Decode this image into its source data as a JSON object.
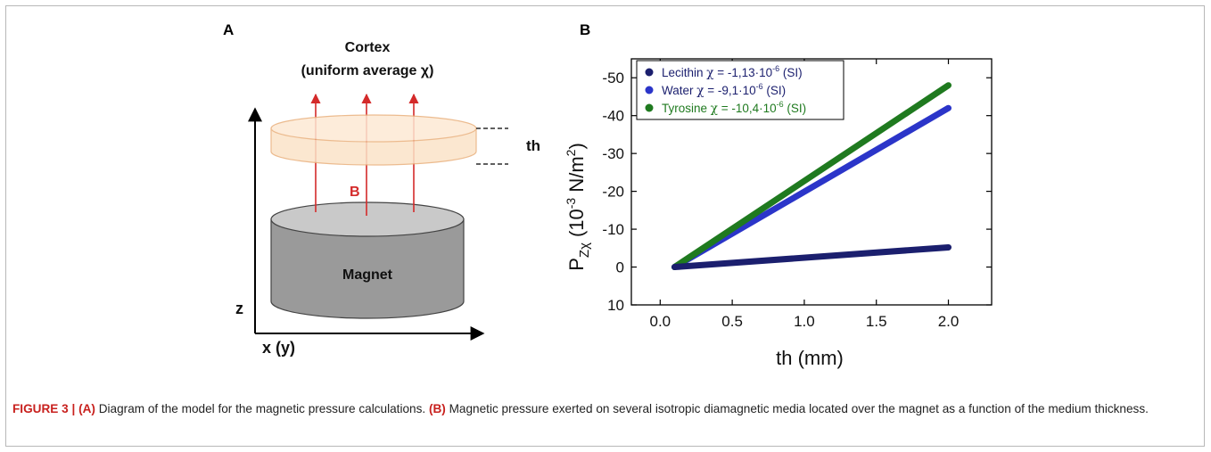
{
  "panel_a": {
    "letter": "A",
    "cortex_title": "Cortex",
    "cortex_subtitle": "(uniform average χ)",
    "thickness_label": "th",
    "field_label": "B",
    "magnet_label": "Magnet",
    "z_axis_label": "z",
    "x_axis_label": "x (y)",
    "colors": {
      "cortex_fill": "#fbe3c8",
      "cortex_stroke": "#e9b07c",
      "magnet_side": "#9a9a9a",
      "magnet_top": "#c9c9c9",
      "field_lines": "#d42a2a"
    }
  },
  "panel_b": {
    "letter": "B",
    "xlabel": "th (mm)",
    "ylabel_main": "P",
    "ylabel_sub": "Zχ",
    "ylabel_units": "(10",
    "ylabel_exp": "-3",
    "ylabel_units_tail": " N/m",
    "ylabel_exp2": "2",
    "ylabel_close": ")"
  },
  "chart_data": {
    "type": "line",
    "title": "",
    "xlabel": "th (mm)",
    "ylabel": "P_Zχ (10^-3 N/m^2)",
    "xlim": [
      -0.2,
      2.3
    ],
    "ylim": [
      10,
      -55
    ],
    "y_inverted": true,
    "x_ticks": [
      "0.0",
      "0.5",
      "1.0",
      "1.5",
      "2.0"
    ],
    "x_tick_values": [
      0.0,
      0.5,
      1.0,
      1.5,
      2.0
    ],
    "y_ticks": [
      "-50",
      "-40",
      "-30",
      "-20",
      "-10",
      "0",
      "10"
    ],
    "y_tick_values": [
      -50,
      -40,
      -30,
      -20,
      -10,
      0,
      10
    ],
    "legend_position": "top-left",
    "series": [
      {
        "name_prefix": "Lecithin ",
        "name_chi": "χ",
        "name_mid": " = -1,13·10",
        "name_exp": "-6",
        "name_suffix": " (SI)",
        "color": "#1b1f6e",
        "text_color": "#1b1f6e",
        "x": [
          0.1,
          2.0
        ],
        "y": [
          0,
          -5.2
        ]
      },
      {
        "name_prefix": "Water ",
        "name_chi": "χ",
        "name_mid": " = -9,1·10",
        "name_exp": "-6",
        "name_suffix": " (SI)",
        "color": "#2b35c9",
        "text_color": "#1b1f6e",
        "x": [
          0.1,
          2.0
        ],
        "y": [
          0,
          -42
        ]
      },
      {
        "name_prefix": "Tyrosine ",
        "name_chi": "χ",
        "name_mid": " = -10,4·10",
        "name_exp": "-6",
        "name_suffix": " (SI)",
        "color": "#1f7a1f",
        "text_color": "#1f7a1f",
        "x": [
          0.1,
          2.0
        ],
        "y": [
          0,
          -48
        ]
      }
    ]
  },
  "caption": {
    "figure_label": "FIGURE 3 |",
    "part_a_label": "(A)",
    "part_a_text": " Diagram of the model for the magnetic pressure calculations. ",
    "part_b_label": "(B)",
    "part_b_text": " Magnetic pressure exerted on several isotropic diamagnetic media located over the magnet as a function of the medium thickness."
  }
}
